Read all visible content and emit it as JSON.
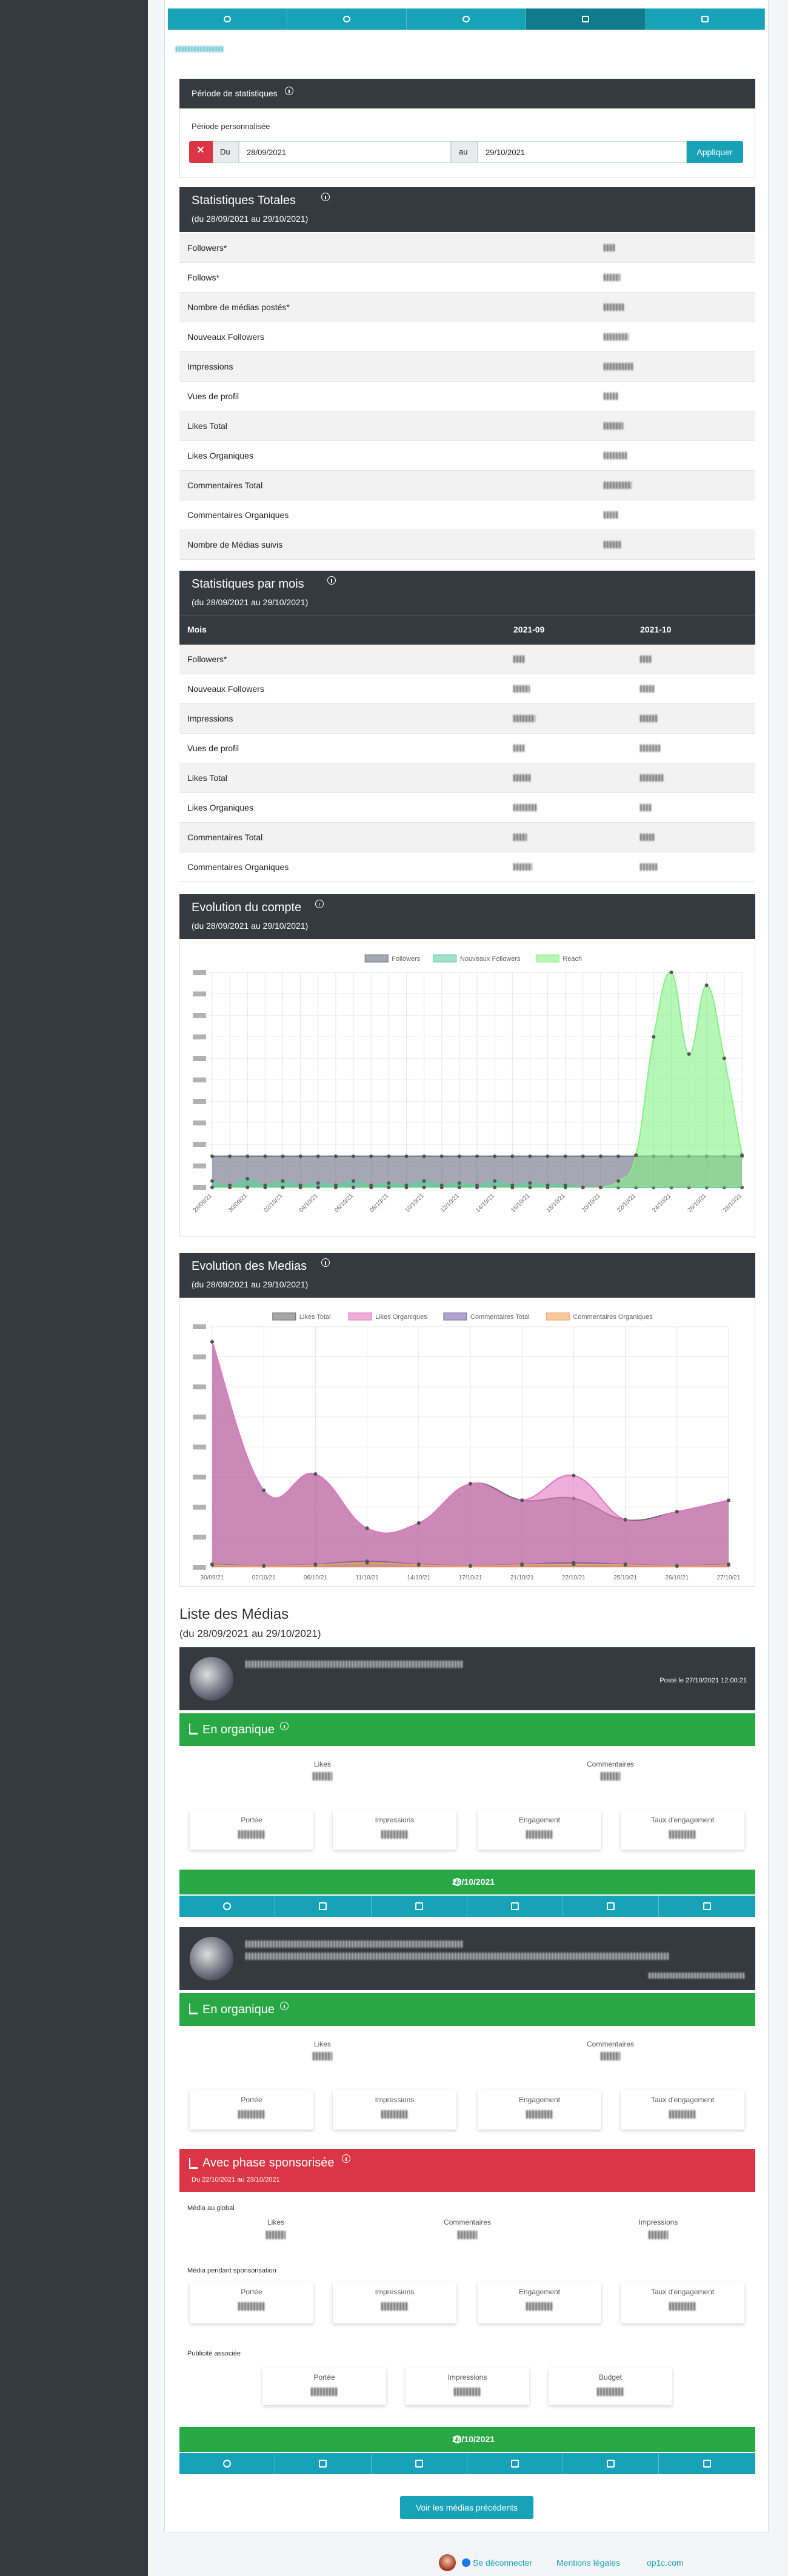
{
  "period": {
    "title": "Période de statistiques",
    "label": "Période personnalisée",
    "from_label": "Du",
    "from": "28/09/2021",
    "to_label": "au",
    "to": "29/10/2021",
    "button": "Appliquer"
  },
  "totals": {
    "title": "Statistiques Totales",
    "subtitle": "(du 28/09/2021 au 29/10/2021)",
    "rows": [
      "Followers*",
      "Follows*",
      "Nombre de médias postés*",
      "Nouveaux Followers",
      "Impressions",
      "Vues de profil",
      "Likes Total",
      "Likes Organiques",
      "Commentaires Total",
      "Commentaires Organiques",
      "Nombre de Médias suivis"
    ]
  },
  "monthly": {
    "title": "Statistiques par mois",
    "subtitle": "(du 28/09/2021 au 29/10/2021)",
    "columns": [
      "Mois",
      "2021-09",
      "2021-10"
    ],
    "rows": [
      "Followers*",
      "Nouveaux Followers",
      "Impressions",
      "Vues de profil",
      "Likes Total",
      "Likes Organiques",
      "Commentaires Total",
      "Commentaires Organiques"
    ]
  },
  "chart_data": [
    {
      "type": "line",
      "title": "Evolution du compte",
      "subtitle": "(du 28/09/2021 au 29/10/2021)",
      "categories": [
        "28/09/21",
        null,
        "30/09/21",
        null,
        "02/10/21",
        null,
        "04/10/21",
        null,
        "06/10/21",
        null,
        "08/10/21",
        null,
        "10/10/21",
        null,
        "12/10/21",
        null,
        "14/10/21",
        null,
        "16/10/21",
        null,
        "18/10/21",
        null,
        "20/10/21",
        null,
        "22/10/21",
        null,
        "24/10/21",
        null,
        "26/10/21",
        null,
        "28/10/21"
      ],
      "series": [
        {
          "name": "Followers",
          "color": "#6c6c80",
          "values": [
            1.45,
            1.45,
            1.45,
            1.45,
            1.45,
            1.45,
            1.45,
            1.45,
            1.45,
            1.45,
            1.45,
            1.45,
            1.45,
            1.45,
            1.45,
            1.45,
            1.45,
            1.45,
            1.45,
            1.45,
            1.45,
            1.45,
            1.45,
            1.45,
            1.45,
            1.45,
            1.45,
            1.45,
            1.45,
            1.45,
            1.45
          ]
        },
        {
          "name": "Nouveaux Followers",
          "color": "#5fcf9f",
          "values": [
            0.3,
            0.1,
            0.4,
            0.1,
            0.3,
            0.1,
            0.2,
            0.1,
            0.3,
            0.1,
            0.2,
            0.1,
            0.3,
            0.1,
            0.2,
            0.1,
            0.3,
            0.1,
            0.2,
            0.1,
            0.1,
            0,
            0,
            0,
            0,
            0,
            0,
            0,
            0,
            0,
            0
          ]
        },
        {
          "name": "Reach",
          "color": "#86f086",
          "values": [
            0,
            0,
            0,
            0,
            0,
            0,
            0,
            0,
            0,
            0,
            0,
            0,
            0,
            0,
            0,
            0,
            0,
            0,
            0,
            0,
            0,
            0,
            0,
            0.3,
            1.5,
            7,
            10,
            6.2,
            9.4,
            6,
            1.5
          ]
        }
      ],
      "ylim": [
        0,
        10
      ],
      "yticks": [
        0,
        1,
        2,
        3,
        4,
        5,
        6,
        7,
        8,
        9,
        10
      ],
      "grid": true,
      "legend": "top"
    },
    {
      "type": "line",
      "title": "Evolution des Medias",
      "subtitle": "(du 28/09/2021 au 29/10/2021)",
      "categories": [
        "30/09/21",
        "02/10/21",
        "06/10/21",
        "11/10/21",
        "14/10/21",
        "17/10/21",
        "21/10/21",
        "22/10/21",
        "25/10/21",
        "26/10/21",
        "27/10/21"
      ],
      "series": [
        {
          "name": "Likes Total",
          "color": "#6b6b6b",
          "values": [
            7.5,
            2.56,
            3.1,
            1.3,
            1.47,
            2.78,
            2.23,
            2.29,
            1.58,
            1.85,
            2.23
          ]
        },
        {
          "name": "Likes Organiques",
          "color": "#e377c2",
          "values": [
            7.5,
            2.56,
            3.1,
            1.3,
            1.47,
            2.78,
            2.23,
            3.05,
            1.58,
            1.85,
            2.23
          ]
        },
        {
          "name": "Commentaires Total",
          "color": "#7b68a6",
          "values": [
            0.1,
            0.05,
            0.1,
            0.2,
            0.1,
            0.05,
            0.1,
            0.15,
            0.1,
            0.05,
            0.1
          ]
        },
        {
          "name": "Commentaires Organiques",
          "color": "#f4a460",
          "values": [
            0.08,
            0.04,
            0.08,
            0.15,
            0.08,
            0.04,
            0.08,
            0.1,
            0.08,
            0.04,
            0.08
          ]
        }
      ],
      "ylim": [
        0,
        8
      ],
      "yticks": [
        0,
        1,
        2,
        3,
        4,
        5,
        6,
        7,
        8
      ],
      "grid": true,
      "legend": "top"
    }
  ],
  "media_list": {
    "title": "Liste des Médias",
    "subtitle": "(du 28/09/2021 au 29/10/2021)",
    "media": [
      {
        "posted": "Posté le 27/10/2021 12:00:21",
        "organic": {
          "title": "En organique",
          "stats": [
            "Likes",
            "Commentaires"
          ],
          "boxes": [
            "Portée",
            "Impressions",
            "Engagement",
            "Taux d'engagement"
          ]
        },
        "date": "28/10/2021"
      },
      {
        "organic": {
          "title": "En organique",
          "stats": [
            "Likes",
            "Commentaires"
          ],
          "boxes": [
            "Portée",
            "Impressions",
            "Engagement",
            "Taux d'engagement"
          ]
        },
        "sponsored": {
          "title": "Avec phase sponsorisée",
          "subtitle": "Du 22/10/2021 au 23/10/2021",
          "global_title": "Média au global",
          "global_stats": [
            "Likes",
            "Commentaires",
            "Impressions"
          ],
          "during_title": "Média pendant sponsorisation",
          "during_boxes": [
            "Portée",
            "Impressions",
            "Engagement",
            "Taux d'engagement"
          ],
          "ad_title": "Publicité associée",
          "ad_boxes": [
            "Portée",
            "Impressions",
            "Budget"
          ]
        },
        "date": "28/10/2021"
      }
    ]
  },
  "more_button": "Voir les médias précédents",
  "footer": {
    "logout": "Se déconnecter",
    "legal": "Mentions légales",
    "site": "op1c.com"
  }
}
